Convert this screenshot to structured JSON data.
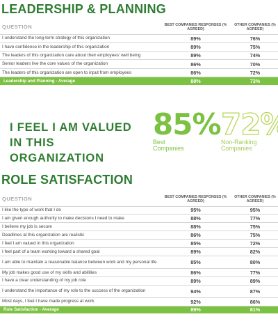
{
  "section1": {
    "title": "LEADERSHIP & PLANNING",
    "header": {
      "question": "QUESTION",
      "best": "BEST COMPANIES RESPONSES (% AGREED)",
      "other": "OTHER COMPANIES (% AGREED)"
    },
    "rows": [
      {
        "q": "I understand the long-term strategy of this organization",
        "best": "89%",
        "other": "76%"
      },
      {
        "q": "I have confidence in the leadership of this organization",
        "best": "89%",
        "other": "75%"
      },
      {
        "q": "The leaders of this organization care about their employees' well being",
        "best": "89%",
        "other": "74%"
      },
      {
        "q": "Senior leaders live the core values of the organization",
        "best": "86%",
        "other": "70%"
      },
      {
        "q": "The leaders of this organization are open to input from employees",
        "best": "86%",
        "other": "72%"
      }
    ],
    "average": {
      "label": "Leadership and Planning - Average",
      "best": "88%",
      "other": "73%"
    }
  },
  "valued": {
    "text": "I FEEL I AM VALUED IN THIS ORGANIZATION",
    "best_value": "85%",
    "best_label": "Best Companies",
    "other_value": "72%",
    "other_label": "Non-Ranking Companies"
  },
  "section2": {
    "title": "ROLE SATISFACTION",
    "header": {
      "question": "QUESTION",
      "best": "BEST COMPANIES RESPONSES (% AGREED)",
      "other": "OTHER COMPANIES (% AGREED)"
    },
    "rows": [
      {
        "q": "I like the type of work that I do",
        "best": "95%",
        "other": "95%"
      },
      {
        "q": "I am given enough authority to make decisions I need to make",
        "best": "88%",
        "other": "77%"
      },
      {
        "q": "I believe my job is secure",
        "best": "88%",
        "other": "75%"
      },
      {
        "q": "Deadlines at this organization are realistic",
        "best": "86%",
        "other": "75%"
      },
      {
        "q": "I feel I am valued in this organization",
        "best": "85%",
        "other": "72%"
      },
      {
        "q": "I feel part of a team working toward a shared goal",
        "best": "89%",
        "other": "82%"
      },
      {
        "q": "I am able to maintain a reasonable balance between work and my personal life",
        "best": "85%",
        "other": "80%"
      },
      {
        "q": "My job makes good use of my skills and abilities",
        "best": "86%",
        "other": "77%"
      },
      {
        "q": "I have a clear understanding of my job role",
        "best": "89%",
        "other": "89%"
      },
      {
        "q": "I understand the importance of my role to the success of the organization",
        "best": "94%",
        "other": "87%"
      },
      {
        "q": "Most days, I feel I have made progress at work",
        "best": "92%",
        "other": "86%"
      }
    ],
    "average": {
      "label": "Role Satisfaction - Average",
      "best": "89%",
      "other": "81%"
    }
  },
  "colors": {
    "title_green": "#2f7d32",
    "accent_green": "#7cc242",
    "light_green": "#b9d75a"
  }
}
